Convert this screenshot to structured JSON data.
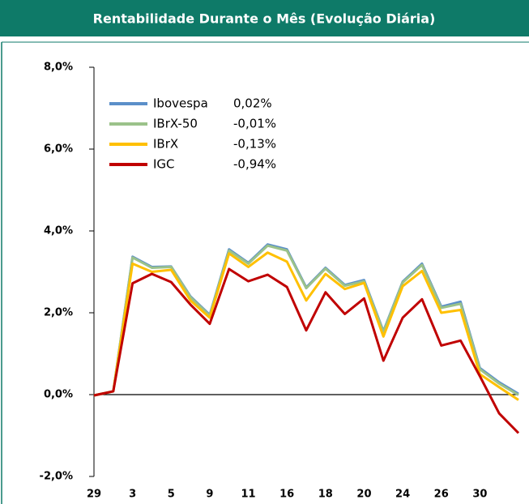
{
  "chart_data": {
    "type": "line",
    "title": "Rentabilidade Durante o Mês (Evolução Diária)",
    "categories": [
      "29",
      null,
      "3",
      null,
      "5",
      null,
      "9",
      null,
      "11",
      null,
      "16",
      null,
      "18",
      null,
      "20",
      null,
      "24",
      null,
      "26",
      null,
      "30",
      null,
      null
    ],
    "series": [
      {
        "name": "Ibovespa",
        "legend_value": "0,02%",
        "color": "#5b8fc9",
        "values": [
          -0.02,
          0.08,
          3.37,
          3.12,
          3.13,
          2.4,
          1.95,
          3.55,
          3.22,
          3.67,
          3.55,
          2.62,
          3.1,
          2.68,
          2.8,
          1.55,
          2.76,
          3.2,
          2.15,
          2.27,
          0.65,
          0.3,
          0.02
        ]
      },
      {
        "name": "IBrX-50",
        "legend_value": "-0,01%",
        "color": "#9bc28a",
        "values": [
          -0.02,
          0.08,
          3.35,
          3.1,
          3.12,
          2.38,
          1.93,
          3.52,
          3.2,
          3.64,
          3.52,
          2.6,
          3.08,
          2.66,
          2.77,
          1.53,
          2.74,
          3.17,
          2.12,
          2.22,
          0.62,
          0.27,
          -0.01
        ]
      },
      {
        "name": "IBrX",
        "legend_value": "-0,13%",
        "color": "#ffc000",
        "values": [
          -0.02,
          0.08,
          3.2,
          3.0,
          3.05,
          2.3,
          1.88,
          3.45,
          3.12,
          3.47,
          3.25,
          2.3,
          2.95,
          2.58,
          2.73,
          1.42,
          2.65,
          3.02,
          2.0,
          2.07,
          0.5,
          0.18,
          -0.13
        ]
      },
      {
        "name": "IGC",
        "legend_value": "-0,94%",
        "color": "#c00000",
        "values": [
          -0.02,
          0.08,
          2.72,
          2.95,
          2.75,
          2.2,
          1.73,
          3.07,
          2.77,
          2.93,
          2.63,
          1.57,
          2.5,
          1.97,
          2.35,
          0.83,
          1.88,
          2.33,
          1.2,
          1.32,
          0.45,
          -0.46,
          -0.94
        ]
      }
    ],
    "ylim": [
      -2,
      8
    ],
    "yticks": [
      {
        "value": -2,
        "label": "-2,0%"
      },
      {
        "value": 0,
        "label": "0,0%"
      },
      {
        "value": 2,
        "label": "2,0%"
      },
      {
        "value": 4,
        "label": "4,0%"
      },
      {
        "value": 6,
        "label": "6,0%"
      },
      {
        "value": 8,
        "label": "8,0%"
      }
    ]
  }
}
